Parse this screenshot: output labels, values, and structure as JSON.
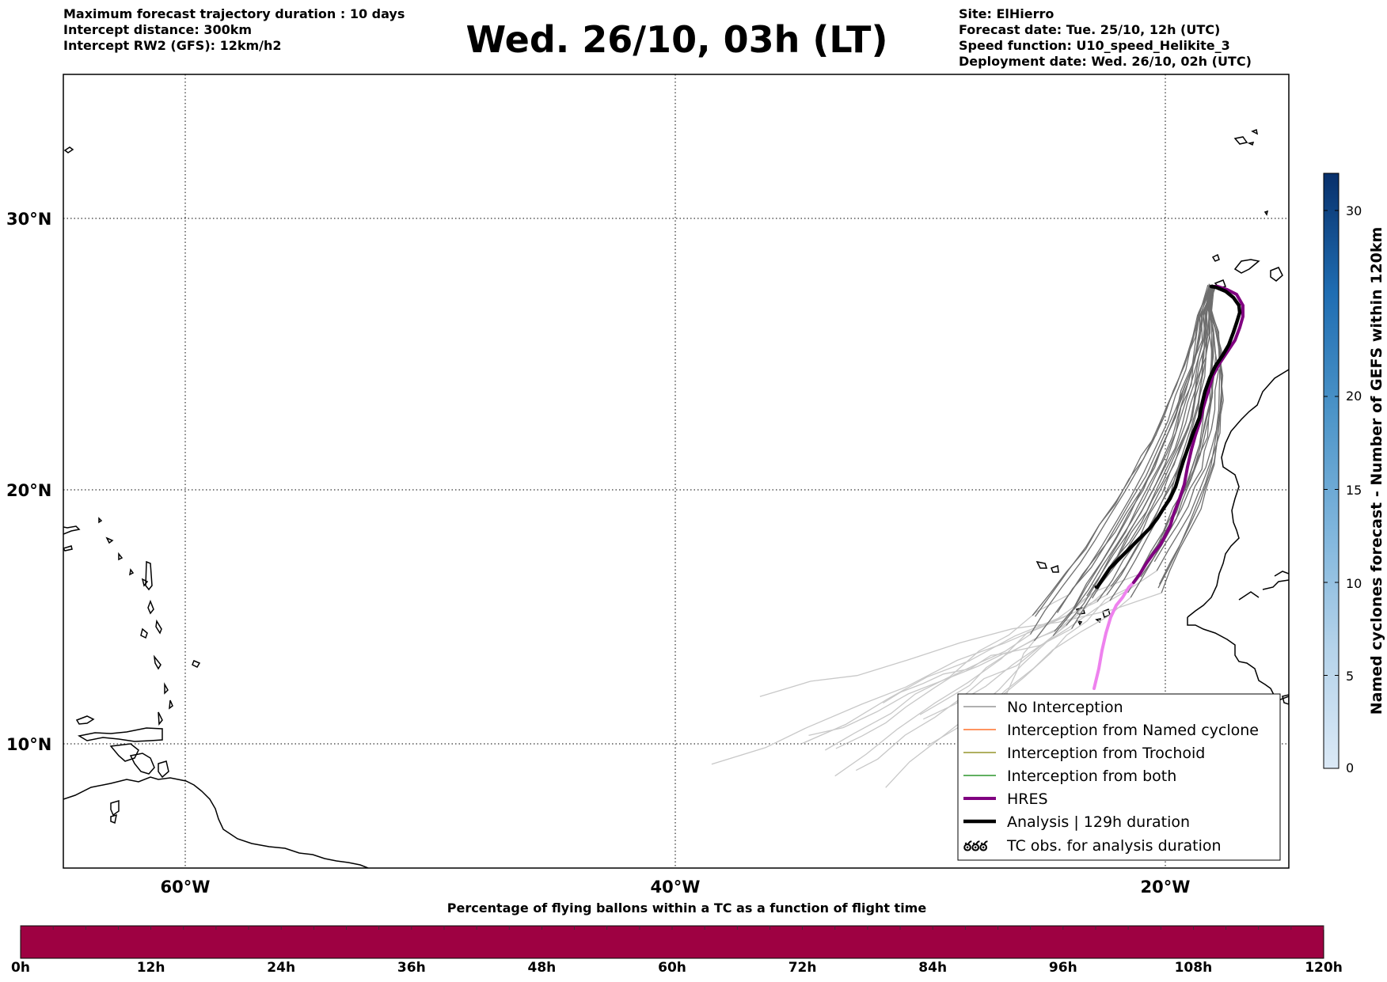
{
  "header_left": {
    "line1": "Maximum forecast trajectory duration : 10 days",
    "line2": "Intercept distance: 300km",
    "line3": "Intercept RW2 (GFS):  12km/h2"
  },
  "title": "Wed. 26/10, 03h (LT)",
  "header_right": {
    "line1": "Site: ElHierro",
    "line2": "Forecast date: Tue. 25/10, 12h (UTC)",
    "line3": "Speed function: U10_speed_Helikite_3",
    "line4": "Deployment date: Wed. 26/10, 02h (UTC)"
  },
  "map": {
    "lat_labels": [
      "30°N",
      "20°N",
      "10°N"
    ],
    "lon_labels": [
      "60°W",
      "40°W",
      "20°W"
    ],
    "site": "ElHierro"
  },
  "legend": {
    "items": [
      {
        "label": "No Interception",
        "color": "#808080"
      },
      {
        "label": "Interception from Named cyclone",
        "color": "#ff5500"
      },
      {
        "label": "Interception from Trochoid",
        "color": "#808000"
      },
      {
        "label": "Interception from both",
        "color": "#008000"
      },
      {
        "label": "HRES",
        "color": "#800080"
      },
      {
        "label": "Analysis | 129h duration",
        "color": "#000000"
      },
      {
        "label": "TC obs. for analysis duration",
        "color": "#000000"
      }
    ],
    "tc_symbol": "ఠఠఠ"
  },
  "colorbar": {
    "label": "Named cyclones forecast - Number of GEFS within 120km",
    "ticks": [
      "0",
      "5",
      "10",
      "15",
      "20",
      "30"
    ],
    "color_low": "#dbe9f6",
    "color_high": "#08306b"
  },
  "timeline": {
    "title": "Percentage of flying ballons within a TC as a function of flight time",
    "labels": [
      "0h",
      "12h",
      "24h",
      "36h",
      "48h",
      "60h",
      "72h",
      "84h",
      "96h",
      "108h",
      "120h"
    ],
    "fill_color": "#9e0142",
    "fill_fraction": 1.0
  },
  "colors": {
    "ensemble_near": "#6e6e6e",
    "ensemble_far": "#c8c8c8",
    "hres": "#800080",
    "hres_far": "#ee82ee",
    "analysis": "#000000"
  }
}
